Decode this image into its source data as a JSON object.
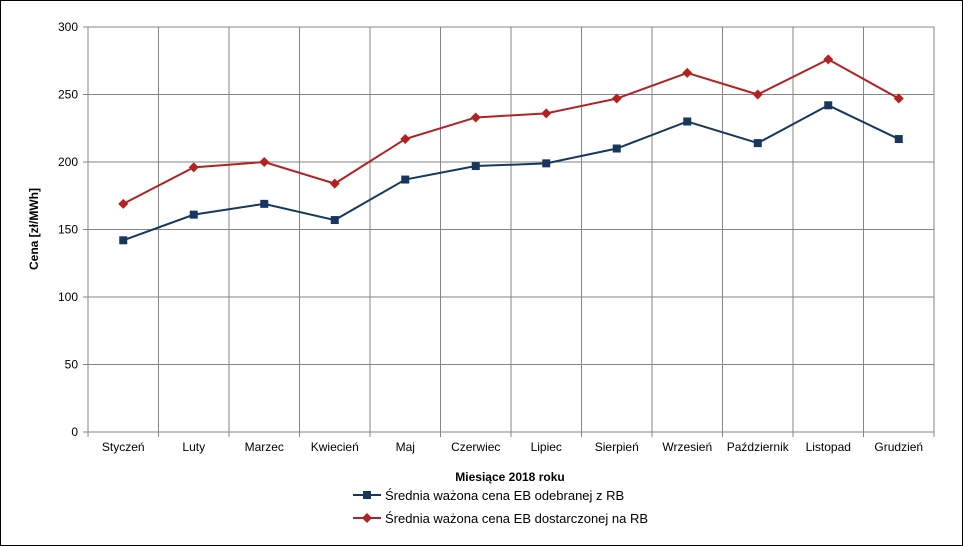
{
  "chart_data": {
    "type": "line",
    "categories": [
      "Styczeń",
      "Luty",
      "Marzec",
      "Kwiecień",
      "Maj",
      "Czerwiec",
      "Lipiec",
      "Sierpień",
      "Wrzesień",
      "Październik",
      "Listopad",
      "Grudzień"
    ],
    "series": [
      {
        "name": "Średnia ważona cena EB odebranej z RB",
        "color": "#17375E",
        "marker": "square",
        "values": [
          142,
          161,
          169,
          157,
          187,
          197,
          199,
          210,
          230,
          214,
          242,
          217
        ]
      },
      {
        "name": "Średnia ważona cena EB dostarczonej na RB",
        "color": "#B22222",
        "marker": "diamond",
        "values": [
          169,
          196,
          200,
          184,
          217,
          233,
          236,
          247,
          266,
          250,
          276,
          247
        ]
      }
    ],
    "title": "",
    "xlabel": "Miesiące 2018  roku",
    "ylabel": "Cena [zł/MWh]",
    "ylim": [
      0,
      300
    ],
    "yticks": [
      "0",
      "50",
      "100",
      "150",
      "200",
      "250",
      "300"
    ],
    "grid": true,
    "legend_position": "bottom"
  }
}
